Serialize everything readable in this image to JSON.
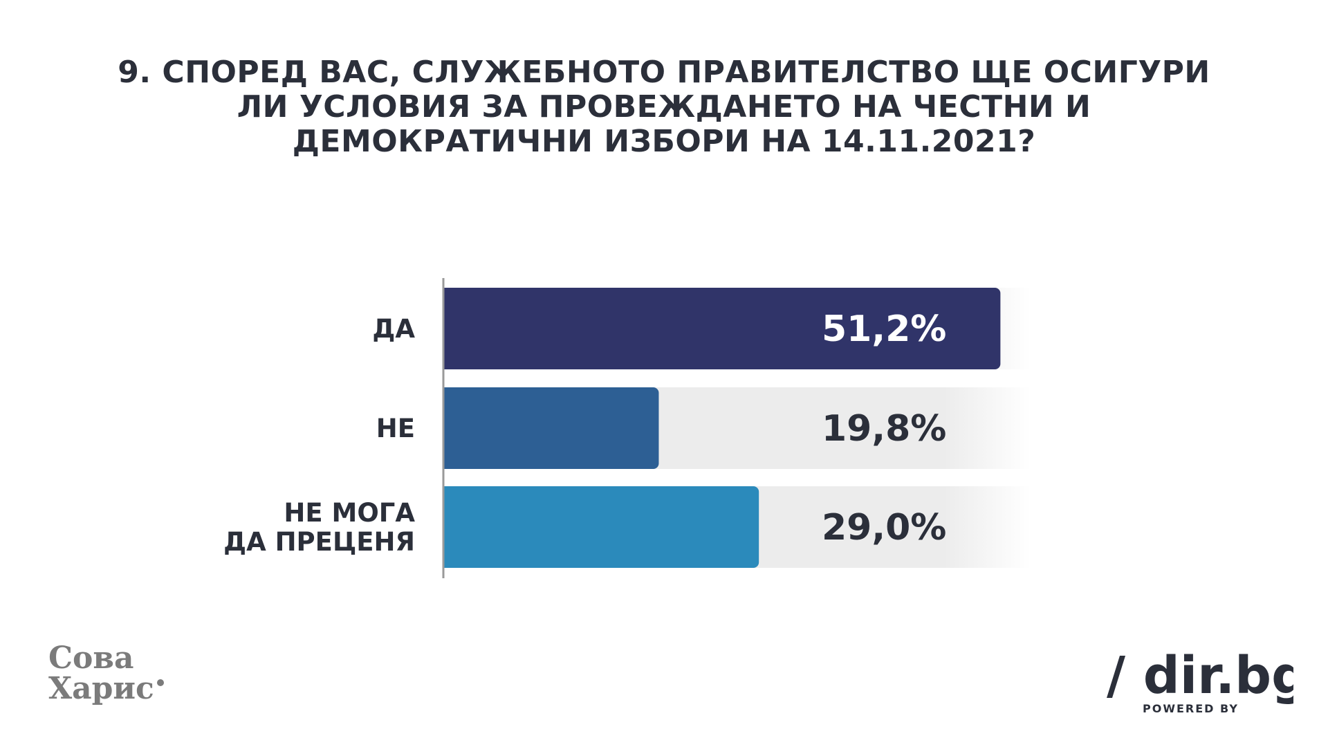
{
  "title": {
    "line1": "9. СПОРЕД ВАС, СЛУЖЕБНОТО ПРАВИТЕЛСТВО ЩЕ ОСИГУРИ",
    "line2": "ЛИ УСЛОВИЯ ЗА ПРОВЕЖДАНЕТО НА ЧЕСТНИ И",
    "line3": "ДЕМОКРАТИЧНИ ИЗБОРИ НА 14.11.2021?"
  },
  "chart_data": {
    "type": "bar",
    "orientation": "horizontal",
    "title": "9. СПОРЕД ВАС, СЛУЖЕБНОТО ПРАВИТЕЛСТВО ЩЕ ОСИГУРИ ЛИ УСЛОВИЯ ЗА ПРОВЕЖДАНЕТО НА ЧЕСТНИ И ДЕМОКРАТИЧНИ ИЗБОРИ НА 14.11.2021?",
    "categories": [
      [
        "ДА"
      ],
      [
        "НЕ"
      ],
      [
        "НЕ МОГА",
        "ДА ПРЕЦЕНЯ"
      ]
    ],
    "values": [
      51.2,
      19.8,
      29.0
    ],
    "value_labels": [
      "51,2%",
      "19,8%",
      "29,0%"
    ],
    "colors": [
      "#303469",
      "#2d5f94",
      "#2b8abb"
    ],
    "value_label_colors": [
      "#ffffff",
      "#2b2f3a",
      "#2b2f3a"
    ],
    "xlim": [
      0,
      100
    ],
    "grid": false,
    "legend": "none"
  },
  "logos": {
    "left_line1": "Сова",
    "left_line2": "Харис",
    "right_main": "/ dir.bg",
    "right_sub": "POWERED BY"
  },
  "colors": {
    "text": "#2b2f3a",
    "track": "#ececec",
    "axis": "#9a9a9a",
    "logo_gray": "#7b7b7b",
    "dir_dark": "#2b2f3a"
  }
}
